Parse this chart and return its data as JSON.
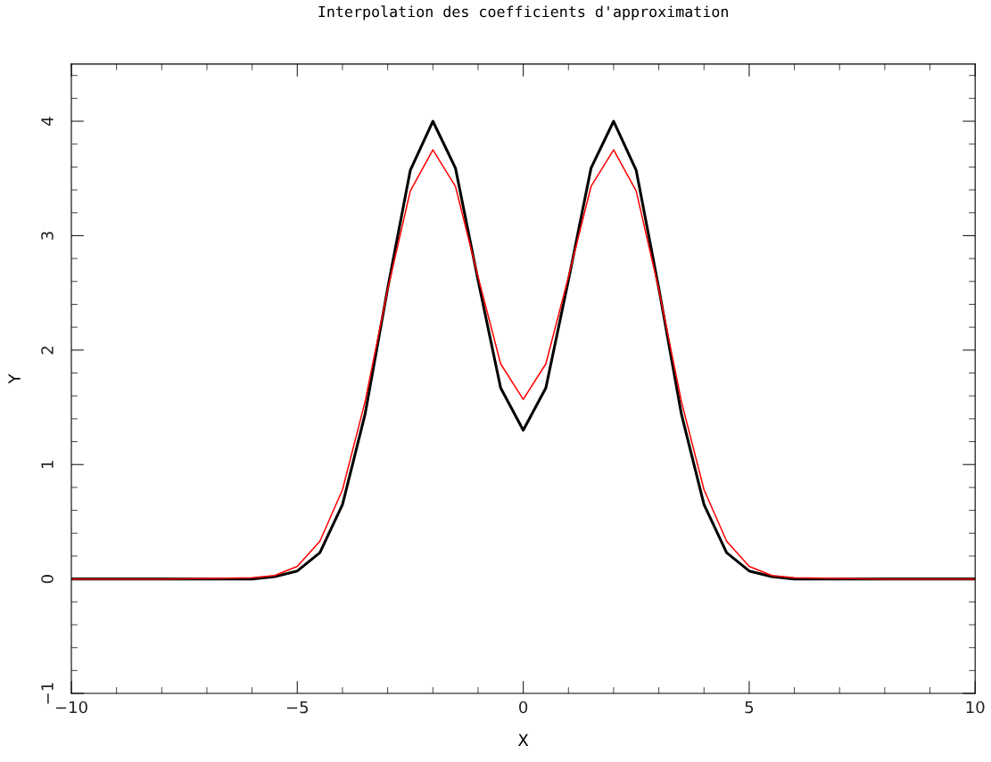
{
  "chart_data": {
    "type": "line",
    "title": "Interpolation des coefficients d'approximation",
    "xlabel": "X",
    "ylabel": "Y",
    "xlim": [
      -10,
      10
    ],
    "xticks": [
      {
        "value": -10,
        "label": "−10"
      },
      {
        "value": -5,
        "label": "−5"
      },
      0,
      5,
      10
    ],
    "ylim": [
      -1,
      4.5
    ],
    "yticks": [
      {
        "value": -1,
        "label": "−1"
      },
      0,
      1,
      2,
      3,
      4
    ],
    "grid": false,
    "legend": false,
    "marker": "none",
    "line_style": "solid",
    "series": [
      {
        "color": "#000000",
        "x": [
          -10,
          -8,
          -6,
          -5.5,
          -5,
          -4.5,
          -4,
          -3.5,
          -3,
          -2.5,
          -2,
          -1.5,
          -1,
          -0.5,
          0,
          0.5,
          1,
          1.5,
          2,
          2.5,
          3,
          3.5,
          4,
          4.5,
          5,
          5.5,
          6,
          8,
          10
        ],
        "values": [
          0,
          0,
          0,
          0.02,
          0.07,
          0.23,
          0.65,
          1.44,
          2.54,
          3.57,
          4.0,
          3.59,
          2.61,
          1.67,
          1.3,
          1.67,
          2.61,
          3.59,
          4.0,
          3.57,
          2.54,
          1.44,
          0.65,
          0.23,
          0.07,
          0.02,
          0,
          0,
          0
        ]
      },
      {
        "color": "#ff0000",
        "x": [
          -10,
          -8,
          -6,
          -5.5,
          -5,
          -4.5,
          -4,
          -3.5,
          -3,
          -2.5,
          -2,
          -1.5,
          -1,
          -0.5,
          0,
          0.5,
          1,
          1.5,
          2,
          2.5,
          3,
          3.5,
          4,
          4.5,
          5,
          5.5,
          6,
          8,
          10
        ],
        "values": [
          0,
          0,
          0.01,
          0.03,
          0.11,
          0.33,
          0.78,
          1.55,
          2.53,
          3.39,
          3.75,
          3.43,
          2.64,
          1.88,
          1.57,
          1.88,
          2.64,
          3.43,
          3.75,
          3.39,
          2.53,
          1.55,
          0.78,
          0.33,
          0.11,
          0.03,
          0.01,
          0,
          0
        ]
      }
    ]
  }
}
